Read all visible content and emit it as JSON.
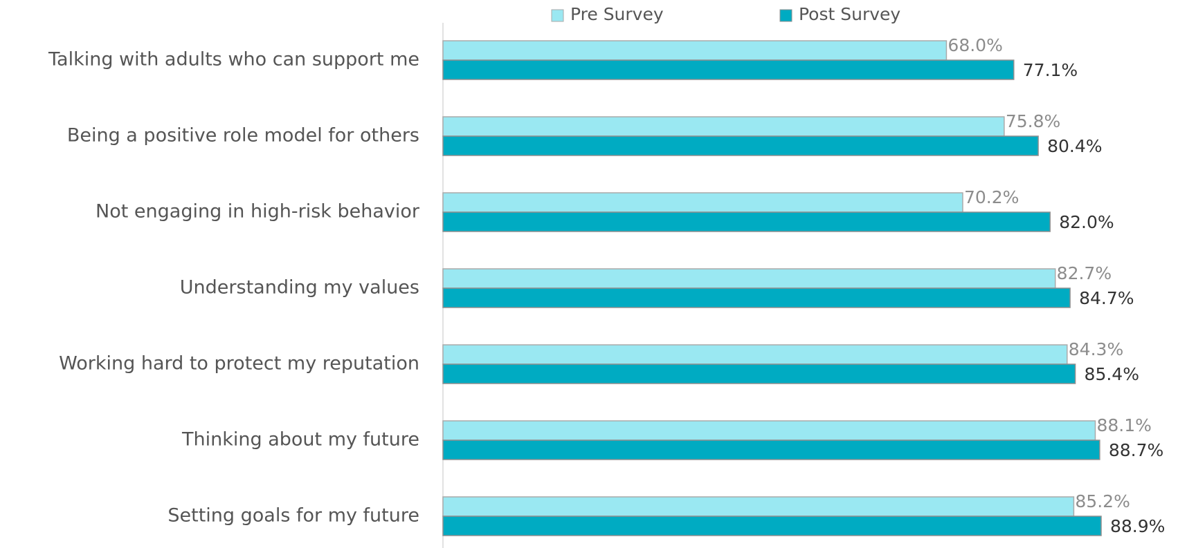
{
  "chart_data": {
    "type": "hbar",
    "categories": [
      "Talking with adults who can support me",
      "Being a positive role model for others",
      "Not engaging in high-risk behavior",
      "Understanding my values",
      "Working hard to protect my reputation",
      "Thinking about my future",
      "Setting goals for my future"
    ],
    "series": [
      {
        "name": "Pre Survey",
        "color": "#9ae8f2",
        "values": [
          68.0,
          75.8,
          70.2,
          82.7,
          84.3,
          88.1,
          85.2
        ],
        "value_labels": [
          "68.0%",
          "75.8%",
          "70.2%",
          "82.7%",
          "84.3%",
          "88.1%",
          "85.2%"
        ]
      },
      {
        "name": "Post Survey",
        "color": "#00abc2",
        "values": [
          77.1,
          80.4,
          82.0,
          84.7,
          85.4,
          88.7,
          88.9
        ],
        "value_labels": [
          "77.1%",
          "80.4%",
          "82.0%",
          "84.7%",
          "85.4%",
          "88.7%",
          "88.9%"
        ]
      }
    ],
    "legend": "top"
  }
}
